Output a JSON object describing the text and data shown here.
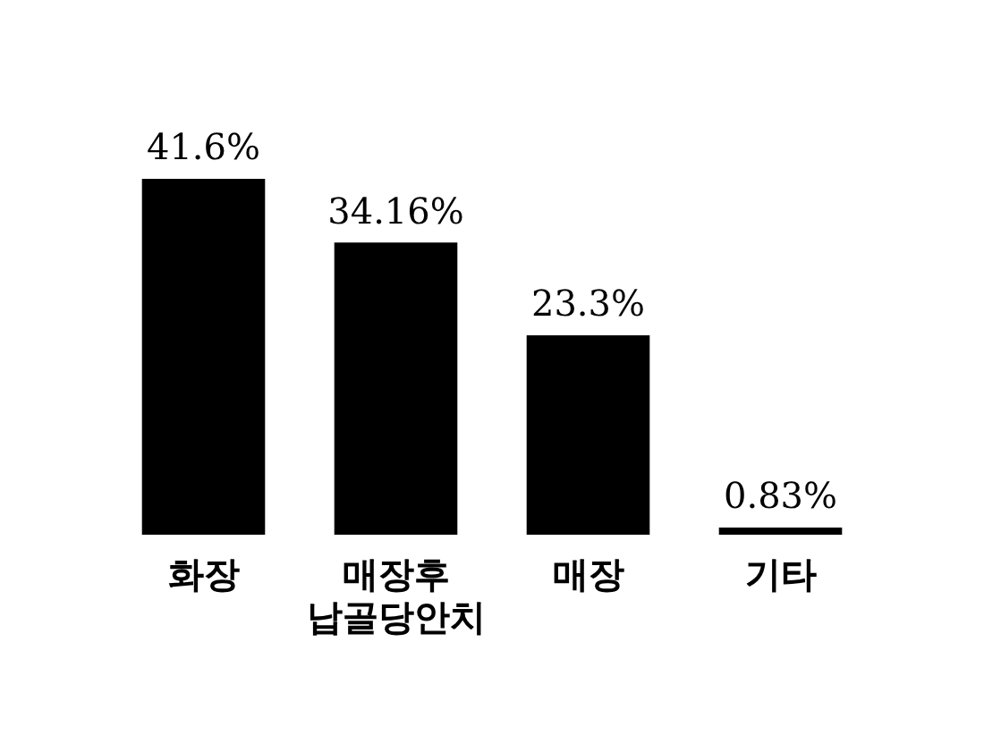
{
  "chart_data": {
    "type": "bar",
    "categories": [
      "화장",
      "매장후\n납골당안치",
      "매장",
      "기타"
    ],
    "values": [
      41.6,
      34.16,
      23.3,
      0.83
    ],
    "value_labels": [
      "41.6%",
      "34.16%",
      "23.3%",
      "0.83%"
    ],
    "color": "#000000",
    "grid": false,
    "legend": false
  }
}
